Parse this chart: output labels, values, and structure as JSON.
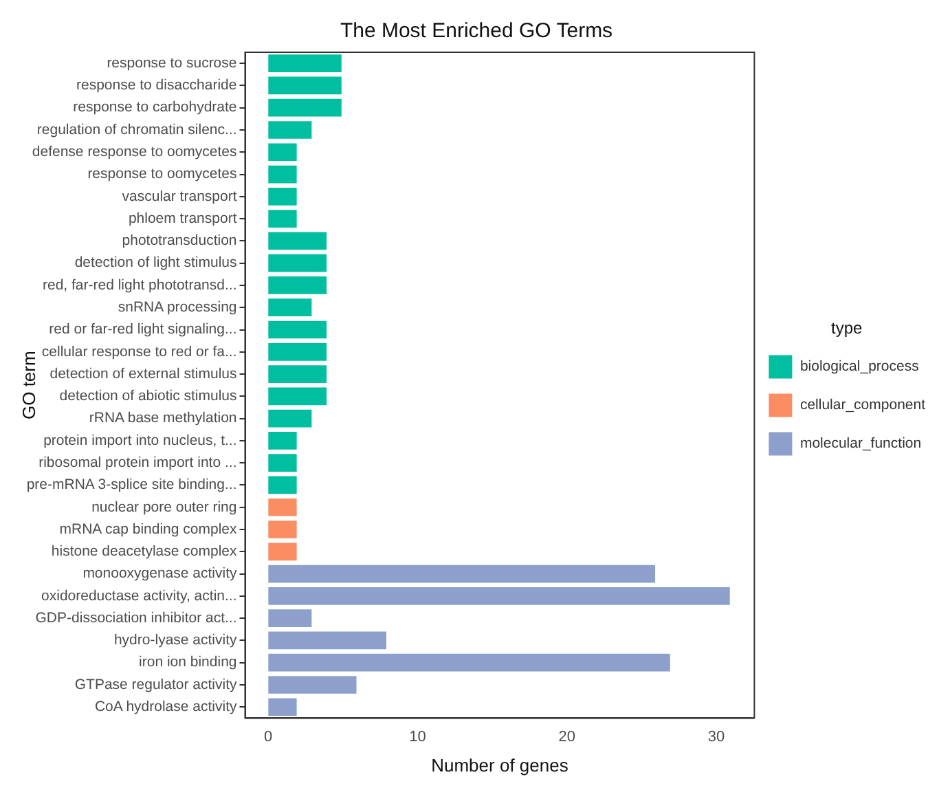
{
  "chart_data": {
    "type": "bar",
    "orientation": "horizontal",
    "title": "The Most Enriched GO Terms",
    "xlabel": "Number of genes",
    "ylabel": "GO term",
    "legend_title": "type",
    "legend": "right",
    "grid": false,
    "categories": [
      "response to sucrose",
      "response to disaccharide",
      "response to carbohydrate",
      "regulation of chromatin silenc...",
      "defense response to oomycetes",
      "response to oomycetes",
      "vascular transport",
      "phloem transport",
      "phototransduction",
      "detection of light stimulus",
      "red, far-red light phototransd...",
      "snRNA processing",
      "red or far-red light signaling...",
      "cellular response to red or fa...",
      "detection of external stimulus",
      "detection of abiotic stimulus",
      "rRNA base methylation",
      "protein import into nucleus, t...",
      "ribosomal protein import into ...",
      "pre-mRNA 3-splice site binding...",
      "nuclear pore outer ring",
      "mRNA cap binding complex",
      "histone deacetylase complex",
      "monooxygenase activity",
      "oxidoreductase activity, actin...",
      "GDP-dissociation inhibitor act...",
      "hydro-lyase activity",
      "iron ion binding",
      "GTPase regulator activity",
      "CoA hydrolase activity"
    ],
    "series": [
      {
        "name": "biological_process",
        "color": "#00bfa0",
        "values": [
          5,
          5,
          5,
          3,
          2,
          2,
          2,
          2,
          4,
          4,
          4,
          3,
          4,
          4,
          4,
          4,
          3,
          2,
          2,
          2,
          null,
          null,
          null,
          null,
          null,
          null,
          null,
          null,
          null,
          null
        ]
      },
      {
        "name": "cellular_component",
        "color": "#fc8d62",
        "values": [
          null,
          null,
          null,
          null,
          null,
          null,
          null,
          null,
          null,
          null,
          null,
          null,
          null,
          null,
          null,
          null,
          null,
          null,
          null,
          null,
          2,
          2,
          2,
          null,
          null,
          null,
          null,
          null,
          null,
          null
        ]
      },
      {
        "name": "molecular_function",
        "color": "#8da0cb",
        "values": [
          null,
          null,
          null,
          null,
          null,
          null,
          null,
          null,
          null,
          null,
          null,
          null,
          null,
          null,
          null,
          null,
          null,
          null,
          null,
          null,
          null,
          null,
          null,
          26,
          31,
          3,
          8,
          27,
          6,
          2
        ]
      }
    ],
    "xlim": [
      -1.55,
      32.55
    ],
    "xticks": [
      0,
      10,
      20,
      30
    ]
  }
}
